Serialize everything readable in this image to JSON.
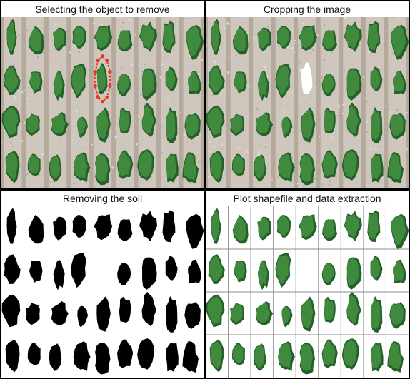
{
  "figure": {
    "panels": [
      {
        "id": "select",
        "title": "Selecting the object to remove"
      },
      {
        "id": "crop",
        "title": "Cropping the image"
      },
      {
        "id": "soil",
        "title": "Removing the soil"
      },
      {
        "id": "shapefile",
        "title": "Plot shapefile and data extraction"
      }
    ]
  },
  "colors": {
    "soil": "#cfc7bd",
    "furrow": "#a99c8e",
    "plant": "#3f8a3c",
    "plant_dark": "#24602a",
    "selection": "#e23a22",
    "mask": "#000000",
    "grid": "#8c8c8c"
  },
  "layout_grid": {
    "rows": 4,
    "columns": 9,
    "removed_plot": {
      "row": 2,
      "column": 5
    }
  }
}
